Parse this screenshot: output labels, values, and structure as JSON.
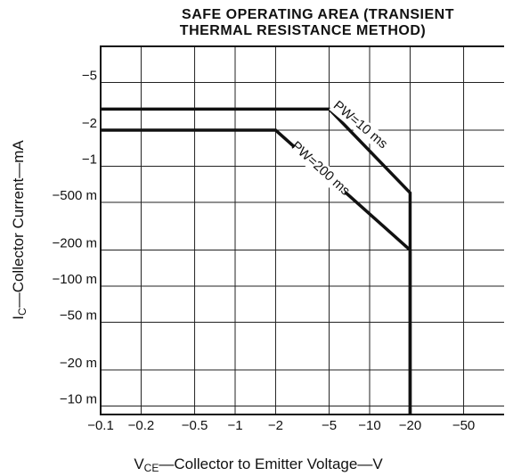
{
  "chart_data": {
    "type": "line",
    "title": [
      "SAFE OPERATING AREA (TRANSIENT",
      "THERMAL RESISTANCE METHOD)"
    ],
    "xlabel": {
      "symbol": "V",
      "subscript": "CE",
      "text": "—Collector to Emitter Voltage—V"
    },
    "ylabel": {
      "symbol": "I",
      "subscript": "C",
      "text": "—Collector Current—mA"
    },
    "log_scale": true,
    "grid": true,
    "xlim": [
      -0.1,
      -100
    ],
    "ylim": [
      -0.0085,
      -10
    ],
    "xticks": [
      {
        "value": -0.1,
        "label": "−0.1"
      },
      {
        "value": -0.2,
        "label": "−0.2"
      },
      {
        "value": -0.5,
        "label": "−0.5"
      },
      {
        "value": -1,
        "label": "−1"
      },
      {
        "value": -2,
        "label": "−2"
      },
      {
        "value": -5,
        "label": "−5"
      },
      {
        "value": -10,
        "label": "−10"
      },
      {
        "value": -20,
        "label": "−20"
      },
      {
        "value": -50,
        "label": "−50"
      }
    ],
    "yticks": [
      {
        "value": -0.01,
        "label": "−10 m"
      },
      {
        "value": -0.02,
        "label": "−20 m"
      },
      {
        "value": -0.05,
        "label": "−50 m"
      },
      {
        "value": -0.1,
        "label": "−100 m"
      },
      {
        "value": -0.2,
        "label": "−200 m"
      },
      {
        "value": -0.5,
        "label": "−500 m"
      },
      {
        "value": -1,
        "label": "−1"
      },
      {
        "value": -2,
        "label": "−2"
      },
      {
        "value": -5,
        "label": "−5"
      }
    ],
    "series": [
      {
        "name": "PW=10 ms",
        "color": "#111111",
        "x": [
          -0.1,
          -5,
          -20,
          -20
        ],
        "values": [
          -3,
          -3,
          -0.6,
          -0.0085
        ]
      },
      {
        "name": "PW=200 ms",
        "color": "#111111",
        "x": [
          -0.1,
          -2,
          -20,
          -20
        ],
        "values": [
          -2,
          -2,
          -0.2,
          -0.0085
        ]
      }
    ]
  }
}
